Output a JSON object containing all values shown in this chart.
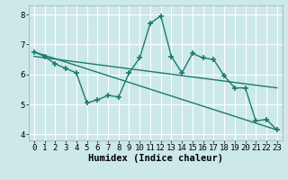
{
  "xlabel": "Humidex (Indice chaleur)",
  "ylabel": "",
  "background_color": "#cce8e8",
  "grid_color": "#ffffff",
  "line_color": "#1a7a6e",
  "xlim": [
    -0.5,
    23.5
  ],
  "ylim": [
    3.8,
    8.3
  ],
  "yticks": [
    4,
    5,
    6,
    7,
    8
  ],
  "xticks": [
    0,
    1,
    2,
    3,
    4,
    5,
    6,
    7,
    8,
    9,
    10,
    11,
    12,
    13,
    14,
    15,
    16,
    17,
    18,
    19,
    20,
    21,
    22,
    23
  ],
  "series1_x": [
    0,
    1,
    2,
    3,
    4,
    5,
    6,
    7,
    8,
    9,
    10,
    11,
    12,
    13,
    14,
    15,
    16,
    17,
    18,
    19,
    20,
    21,
    22,
    23
  ],
  "series1_y": [
    6.75,
    6.6,
    6.35,
    6.2,
    6.05,
    5.05,
    5.15,
    5.3,
    5.25,
    6.05,
    6.55,
    7.7,
    7.95,
    6.6,
    6.05,
    6.7,
    6.55,
    6.5,
    5.95,
    5.55,
    5.55,
    4.45,
    4.5,
    4.15
  ],
  "series2_x": [
    0,
    23
  ],
  "series2_y": [
    6.75,
    4.15
  ],
  "series3_x": [
    0,
    23
  ],
  "series3_y": [
    6.6,
    5.55
  ],
  "marker_size": 4,
  "line_width": 1.0,
  "tick_fontsize": 6.5,
  "xlabel_fontsize": 7.5
}
